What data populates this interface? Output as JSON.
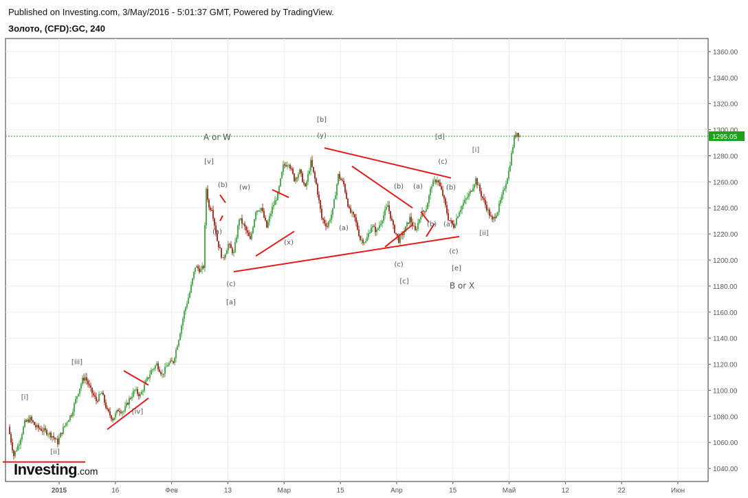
{
  "header": {
    "published": "Published on Investing.com, 3/May/2016 - 5:01:37 GMT, Powered by TradingView.",
    "symbol": "Золото, (CFD):GC, 240"
  },
  "logo": {
    "main": "Investing",
    "suffix": ".com"
  },
  "chart_data": {
    "type": "candlestick",
    "title": "Золото, (CFD):GC, 240",
    "ylim": [
      1030,
      1370
    ],
    "y_ticks": [
      "1360.00",
      "1340.00",
      "1320.00",
      "1300.00",
      "1280.00",
      "1260.00",
      "1240.00",
      "1220.00",
      "1200.00",
      "1180.00",
      "1160.00",
      "1140.00",
      "1120.00",
      "1100.00",
      "1080.00",
      "1060.00",
      "1040.00"
    ],
    "x_ticks": [
      "2015",
      "16",
      "Фев",
      "13",
      "Мар",
      "15",
      "Апр",
      "15",
      "Май",
      "12",
      "22",
      "Июн"
    ],
    "current_price": "1295.05",
    "grid": true,
    "colors": {
      "up": "#4caf50",
      "down": "#b2352a",
      "trendline": "#e8191b",
      "price_line": "#27a327",
      "price_badge": "#1fa01f"
    },
    "price_path": [
      [
        0,
        1072
      ],
      [
        2,
        1050
      ],
      [
        4,
        1060
      ],
      [
        6,
        1075
      ],
      [
        8,
        1078
      ],
      [
        10,
        1072
      ],
      [
        12,
        1070
      ],
      [
        14,
        1068
      ],
      [
        16,
        1065
      ],
      [
        18,
        1060
      ],
      [
        19,
        1066
      ],
      [
        21,
        1075
      ],
      [
        23,
        1082
      ],
      [
        25,
        1096
      ],
      [
        27,
        1108
      ],
      [
        28,
        1110
      ],
      [
        30,
        1100
      ],
      [
        32,
        1092
      ],
      [
        34,
        1098
      ],
      [
        36,
        1084
      ],
      [
        38,
        1078
      ],
      [
        40,
        1085
      ],
      [
        42,
        1084
      ],
      [
        44,
        1093
      ],
      [
        46,
        1100
      ],
      [
        48,
        1096
      ],
      [
        50,
        1106
      ],
      [
        52,
        1115
      ],
      [
        54,
        1120
      ],
      [
        56,
        1112
      ],
      [
        58,
        1120
      ],
      [
        60,
        1122
      ],
      [
        62,
        1140
      ],
      [
        64,
        1160
      ],
      [
        66,
        1175
      ],
      [
        68,
        1195
      ],
      [
        70,
        1192
      ],
      [
        71,
        1195
      ],
      [
        72,
        1255
      ],
      [
        73,
        1240
      ],
      [
        74,
        1240
      ],
      [
        76,
        1215
      ],
      [
        78,
        1200
      ],
      [
        80,
        1212
      ],
      [
        82,
        1205
      ],
      [
        84,
        1232
      ],
      [
        86,
        1225
      ],
      [
        88,
        1215
      ],
      [
        90,
        1238
      ],
      [
        92,
        1240
      ],
      [
        94,
        1225
      ],
      [
        96,
        1240
      ],
      [
        98,
        1250
      ],
      [
        100,
        1272
      ],
      [
        102,
        1275
      ],
      [
        104,
        1262
      ],
      [
        106,
        1268
      ],
      [
        108,
        1255
      ],
      [
        110,
        1275
      ],
      [
        112,
        1258
      ],
      [
        114,
        1232
      ],
      [
        116,
        1226
      ],
      [
        118,
        1238
      ],
      [
        120,
        1265
      ],
      [
        122,
        1258
      ],
      [
        124,
        1238
      ],
      [
        126,
        1232
      ],
      [
        128,
        1216
      ],
      [
        130,
        1214
      ],
      [
        132,
        1226
      ],
      [
        134,
        1222
      ],
      [
        136,
        1232
      ],
      [
        138,
        1242
      ],
      [
        140,
        1225
      ],
      [
        142,
        1215
      ],
      [
        144,
        1222
      ],
      [
        146,
        1232
      ],
      [
        148,
        1222
      ],
      [
        150,
        1235
      ],
      [
        152,
        1240
      ],
      [
        154,
        1258
      ],
      [
        156,
        1262
      ],
      [
        158,
        1250
      ],
      [
        160,
        1232
      ],
      [
        162,
        1226
      ],
      [
        164,
        1238
      ],
      [
        166,
        1245
      ],
      [
        168,
        1252
      ],
      [
        170,
        1262
      ],
      [
        172,
        1250
      ],
      [
        174,
        1240
      ],
      [
        176,
        1230
      ],
      [
        178,
        1238
      ],
      [
        180,
        1252
      ],
      [
        182,
        1268
      ],
      [
        184,
        1294
      ],
      [
        185,
        1298
      ],
      [
        186,
        1295
      ]
    ],
    "annotations": [
      {
        "text": "[i]",
        "x": 6,
        "y": 1093
      },
      {
        "text": "[ii]",
        "x": 17,
        "y": 1051
      },
      {
        "text": "[iii]",
        "x": 25,
        "y": 1120
      },
      {
        "text": "[iv]",
        "x": 47,
        "y": 1082
      },
      {
        "text": "[v]",
        "x": 73,
        "y": 1274
      },
      {
        "text": "A or W",
        "x": 76,
        "y": 1292
      },
      {
        "text": "(b)",
        "x": 78,
        "y": 1256
      },
      {
        "text": "(w)",
        "x": 86,
        "y": 1254
      },
      {
        "text": "(a)",
        "x": 76,
        "y": 1220
      },
      {
        "text": "(c)",
        "x": 81,
        "y": 1180
      },
      {
        "text": "[a]",
        "x": 81,
        "y": 1166
      },
      {
        "text": "(x)",
        "x": 102,
        "y": 1212
      },
      {
        "text": "[b]",
        "x": 114,
        "y": 1306
      },
      {
        "text": "(y)",
        "x": 114,
        "y": 1294
      },
      {
        "text": "(a)",
        "x": 122,
        "y": 1223
      },
      {
        "text": "(b)",
        "x": 142,
        "y": 1255
      },
      {
        "text": "(c)",
        "x": 142,
        "y": 1195
      },
      {
        "text": "[c]",
        "x": 144,
        "y": 1182
      },
      {
        "text": "(a)",
        "x": 149,
        "y": 1255
      },
      {
        "text": "(b)",
        "x": 154,
        "y": 1226
      },
      {
        "text": "[d]",
        "x": 157,
        "y": 1293
      },
      {
        "text": "(c)",
        "x": 158,
        "y": 1274
      },
      {
        "text": "(b)",
        "x": 161,
        "y": 1254
      },
      {
        "text": "(a)",
        "x": 160,
        "y": 1226
      },
      {
        "text": "(c)",
        "x": 162,
        "y": 1205
      },
      {
        "text": "[e]",
        "x": 163,
        "y": 1192
      },
      {
        "text": "B or X",
        "x": 165,
        "y": 1178
      },
      {
        "text": "[i]",
        "x": 170,
        "y": 1283
      },
      {
        "text": "[ii]",
        "x": 173,
        "y": 1219
      }
    ],
    "trendlines": [
      [
        [
          -2,
          1045
        ],
        [
          28,
          1045
        ]
      ],
      [
        [
          42,
          1115
        ],
        [
          51,
          1104
        ]
      ],
      [
        [
          36,
          1070
        ],
        [
          51,
          1094
        ]
      ],
      [
        [
          77,
          1250
        ],
        [
          79,
          1244
        ]
      ],
      [
        [
          78,
          1234
        ],
        [
          77,
          1230
        ]
      ],
      [
        [
          82,
          1191
        ],
        [
          164,
          1218
        ]
      ],
      [
        [
          90,
          1203
        ],
        [
          104,
          1222
        ]
      ],
      [
        [
          96,
          1254
        ],
        [
          102,
          1248
        ]
      ],
      [
        [
          115,
          1286
        ],
        [
          161,
          1263
        ]
      ],
      [
        [
          125,
          1272
        ],
        [
          147,
          1240
        ]
      ],
      [
        [
          137,
          1210
        ],
        [
          147,
          1227
        ]
      ],
      [
        [
          150,
          1237
        ],
        [
          153,
          1229
        ]
      ],
      [
        [
          152,
          1218
        ],
        [
          155,
          1228
        ]
      ]
    ]
  }
}
